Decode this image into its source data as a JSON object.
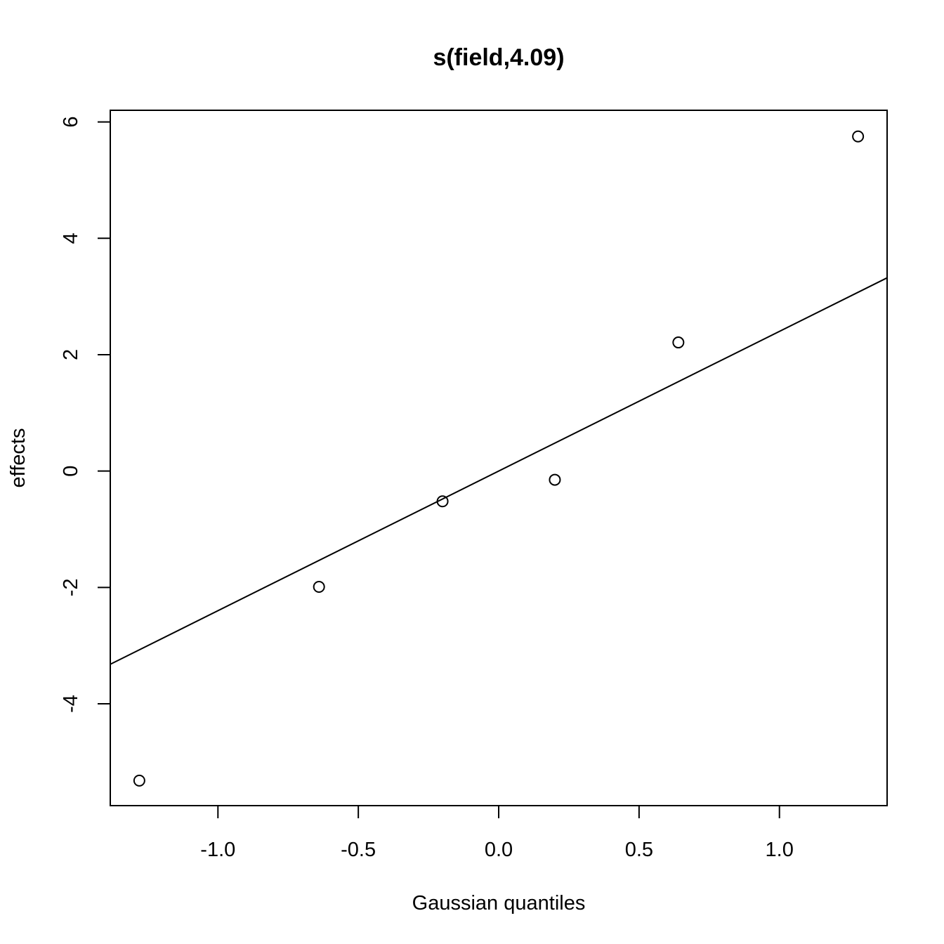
{
  "chart_data": {
    "type": "scatter",
    "title": "s(field,4.09)",
    "xlabel": "Gaussian quantiles",
    "ylabel": "effects",
    "xlim": [
      -1.3835,
      1.3835
    ],
    "ylim": [
      -5.75,
      6.2
    ],
    "x_ticks": [
      -1.0,
      -0.5,
      0.0,
      0.5,
      1.0
    ],
    "x_tick_labels": [
      "-1.0",
      "-0.5",
      "0.0",
      "0.5",
      "1.0"
    ],
    "y_ticks": [
      -4,
      -2,
      0,
      2,
      4,
      6
    ],
    "y_tick_labels": [
      "-4",
      "-2",
      "0",
      "2",
      "4",
      "6"
    ],
    "grid": false,
    "points": [
      {
        "x": -1.28,
        "y": -5.32
      },
      {
        "x": -0.64,
        "y": -1.99
      },
      {
        "x": -0.2,
        "y": -0.52
      },
      {
        "x": 0.2,
        "y": -0.15
      },
      {
        "x": 0.64,
        "y": 2.21
      },
      {
        "x": 1.28,
        "y": 5.75
      }
    ],
    "reference_line": {
      "intercept": 0.0,
      "slope": 2.4
    },
    "colors": {
      "points": "#000000",
      "line": "#000000",
      "frame": "#000000"
    }
  }
}
